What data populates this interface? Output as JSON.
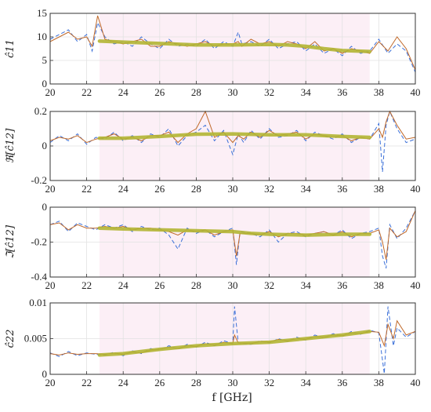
{
  "figure": {
    "xlabel": "f [GHz]",
    "colors": {
      "blue": "#3a6fd8",
      "orange": "#c0692a",
      "green": "#b3b534",
      "axis": "#333333",
      "grid": "#e2e2e2",
      "band": "#f9e1ee"
    }
  },
  "chart_data": [
    {
      "type": "line",
      "ylabel": "ĉ11",
      "xlim": [
        20,
        40
      ],
      "ylim": [
        0,
        15
      ],
      "x_ticks": [
        "20",
        "22",
        "24",
        "26",
        "28",
        "30",
        "32",
        "34",
        "36",
        "38",
        "40"
      ],
      "y_ticks": [
        "0",
        "5",
        "10",
        "15"
      ],
      "series": [
        {
          "role": "raw-dashed",
          "x": [
            20,
            20.5,
            21,
            21.5,
            22,
            22.3,
            22.6,
            23,
            23.5,
            24,
            24.5,
            25,
            25.5,
            26,
            26.5,
            27,
            27.5,
            28,
            28.5,
            29,
            29.5,
            30,
            30.3,
            30.5,
            31,
            31.5,
            32,
            32.5,
            33,
            33.5,
            34,
            34.5,
            35,
            35.5,
            36,
            36.5,
            37,
            37.5,
            38,
            38.5,
            39,
            39.5,
            40
          ],
          "y": [
            9.5,
            10.5,
            11.5,
            9,
            10.5,
            7,
            13,
            10,
            8.5,
            9,
            8,
            10,
            8.5,
            7.5,
            9.5,
            8,
            8.5,
            8,
            9.5,
            7.5,
            9,
            8,
            11,
            8.5,
            9,
            8,
            9.5,
            7.5,
            8.5,
            9,
            7,
            8.5,
            6.5,
            7.5,
            6,
            8,
            6.5,
            7,
            9.5,
            6.5,
            8.5,
            7,
            2.5
          ]
        },
        {
          "role": "raw",
          "x": [
            20,
            20.5,
            21,
            21.5,
            22,
            22.3,
            22.6,
            23,
            23.5,
            24,
            24.5,
            25,
            25.5,
            26,
            26.5,
            27,
            27.5,
            28,
            28.5,
            29,
            29.5,
            30,
            30.3,
            30.5,
            31,
            31.5,
            32,
            32.5,
            33,
            33.5,
            34,
            34.5,
            35,
            35.5,
            36,
            36.5,
            37,
            37.5,
            38,
            38.5,
            39,
            39.5,
            40
          ],
          "y": [
            9,
            10,
            11,
            9.5,
            10,
            8,
            14.5,
            9.5,
            9,
            8.5,
            9,
            9.5,
            8,
            8,
            9,
            8.5,
            8,
            8.5,
            9,
            8,
            8.5,
            8.5,
            9,
            8,
            9.5,
            8.5,
            9,
            8,
            9,
            8.5,
            7.5,
            9,
            7,
            7.5,
            6.5,
            7.5,
            7,
            6.5,
            9,
            7,
            10,
            7.5,
            3
          ]
        },
        {
          "role": "fit",
          "x": [
            22.7,
            24,
            26,
            28,
            30,
            32,
            33,
            34,
            35,
            36,
            37.5
          ],
          "y": [
            9.1,
            8.9,
            8.6,
            8.3,
            8.3,
            8.4,
            8.3,
            8.0,
            7.5,
            7.1,
            6.9
          ]
        }
      ]
    },
    {
      "type": "line",
      "ylabel": "ℜ[ĉ12]",
      "xlim": [
        20,
        40
      ],
      "ylim": [
        -0.2,
        0.2
      ],
      "x_ticks": [
        "20",
        "22",
        "24",
        "26",
        "28",
        "30",
        "32",
        "34",
        "36",
        "38",
        "40"
      ],
      "y_ticks": [
        "-0.2",
        "0",
        "0.2"
      ],
      "series": [
        {
          "role": "raw-dashed",
          "x": [
            20,
            20.5,
            21,
            21.5,
            22,
            22.5,
            23,
            23.5,
            24,
            24.5,
            25,
            25.5,
            26,
            26.5,
            27,
            27.5,
            28,
            28.5,
            29,
            29.5,
            30,
            30.3,
            30.6,
            31,
            31.5,
            32,
            32.5,
            33,
            33.5,
            34,
            34.5,
            35,
            35.5,
            36,
            36.5,
            37,
            37.5,
            38,
            38.2,
            38.4,
            38.6,
            39,
            39.5,
            40
          ],
          "y": [
            0.02,
            0.06,
            0.03,
            0.07,
            0.01,
            0.05,
            0.04,
            0.08,
            0.03,
            0.06,
            0.02,
            0.07,
            0.05,
            0.1,
            0.0,
            0.06,
            0.08,
            0.12,
            0.03,
            0.09,
            -0.05,
            0.07,
            0.02,
            0.09,
            0.04,
            0.1,
            0.05,
            0.06,
            0.09,
            0.03,
            0.08,
            0.06,
            0.04,
            0.07,
            0.02,
            0.05,
            0.04,
            0.13,
            -0.15,
            0.12,
            0.2,
            0.1,
            0.02,
            0.04
          ]
        },
        {
          "role": "raw",
          "x": [
            20,
            20.5,
            21,
            21.5,
            22,
            22.5,
            23,
            23.5,
            24,
            24.5,
            25,
            25.5,
            26,
            26.5,
            27,
            27.5,
            28,
            28.5,
            29,
            29.5,
            30,
            30.3,
            30.6,
            31,
            31.5,
            32,
            32.5,
            33,
            33.5,
            34,
            34.5,
            35,
            35.5,
            36,
            36.5,
            37,
            37.5,
            38,
            38.2,
            38.4,
            38.6,
            39,
            39.5,
            40
          ],
          "y": [
            0.03,
            0.05,
            0.04,
            0.06,
            0.02,
            0.04,
            0.05,
            0.07,
            0.04,
            0.05,
            0.03,
            0.06,
            0.06,
            0.08,
            0.02,
            0.07,
            0.1,
            0.2,
            0.05,
            0.08,
            0.02,
            0.06,
            0.04,
            0.08,
            0.05,
            0.09,
            0.06,
            0.07,
            0.08,
            0.04,
            0.07,
            0.06,
            0.05,
            0.06,
            0.03,
            0.05,
            0.04,
            0.1,
            0.05,
            0.14,
            0.2,
            0.12,
            0.04,
            0.05
          ]
        },
        {
          "role": "fit",
          "x": [
            22.7,
            24,
            26,
            28,
            30,
            32,
            34,
            36,
            37.5
          ],
          "y": [
            0.045,
            0.045,
            0.055,
            0.068,
            0.07,
            0.065,
            0.065,
            0.055,
            0.05
          ]
        }
      ]
    },
    {
      "type": "line",
      "ylabel": "ℑ[ĉ12]",
      "xlim": [
        20,
        40
      ],
      "ylim": [
        -0.4,
        0
      ],
      "x_ticks": [
        "20",
        "22",
        "24",
        "26",
        "28",
        "30",
        "32",
        "34",
        "36",
        "38",
        "40"
      ],
      "y_ticks": [
        "-0.4",
        "-0.2",
        "0"
      ],
      "series": [
        {
          "role": "raw-dashed",
          "x": [
            20,
            20.5,
            21,
            21.5,
            22,
            22.5,
            23,
            23.5,
            24,
            24.5,
            25,
            25.5,
            26,
            26.5,
            27,
            27.5,
            28,
            28.5,
            29,
            29.5,
            30,
            30.2,
            30.4,
            31,
            31.5,
            32,
            32.5,
            33,
            33.5,
            34,
            34.5,
            35,
            35.5,
            36,
            36.5,
            37,
            37.5,
            38,
            38.2,
            38.4,
            38.6,
            39,
            39.5,
            40
          ],
          "y": [
            -0.1,
            -0.08,
            -0.14,
            -0.09,
            -0.11,
            -0.13,
            -0.1,
            -0.12,
            -0.1,
            -0.14,
            -0.11,
            -0.13,
            -0.12,
            -0.16,
            -0.24,
            -0.12,
            -0.15,
            -0.13,
            -0.17,
            -0.14,
            -0.12,
            -0.33,
            -0.14,
            -0.15,
            -0.17,
            -0.13,
            -0.2,
            -0.15,
            -0.14,
            -0.17,
            -0.15,
            -0.14,
            -0.16,
            -0.13,
            -0.18,
            -0.15,
            -0.14,
            -0.12,
            -0.28,
            -0.35,
            -0.1,
            -0.18,
            -0.12,
            -0.02
          ]
        },
        {
          "role": "raw",
          "x": [
            20,
            20.5,
            21,
            21.5,
            22,
            22.5,
            23,
            23.5,
            24,
            24.5,
            25,
            25.5,
            26,
            26.5,
            27,
            27.5,
            28,
            28.5,
            29,
            29.5,
            30,
            30.2,
            30.4,
            31,
            31.5,
            32,
            32.5,
            33,
            33.5,
            34,
            34.5,
            35,
            35.5,
            36,
            36.5,
            37,
            37.5,
            38,
            38.2,
            38.4,
            38.6,
            39,
            39.5,
            40
          ],
          "y": [
            -0.1,
            -0.09,
            -0.13,
            -0.1,
            -0.12,
            -0.12,
            -0.11,
            -0.12,
            -0.11,
            -0.13,
            -0.12,
            -0.12,
            -0.13,
            -0.14,
            -0.16,
            -0.13,
            -0.14,
            -0.13,
            -0.16,
            -0.14,
            -0.13,
            -0.28,
            -0.15,
            -0.15,
            -0.16,
            -0.14,
            -0.17,
            -0.15,
            -0.15,
            -0.16,
            -0.15,
            -0.14,
            -0.16,
            -0.14,
            -0.17,
            -0.15,
            -0.15,
            -0.13,
            -0.2,
            -0.3,
            -0.12,
            -0.17,
            -0.14,
            -0.02
          ]
        },
        {
          "role": "fit",
          "x": [
            22.7,
            24,
            26,
            28,
            30,
            31,
            32,
            34,
            36,
            37.5
          ],
          "y": [
            -0.12,
            -0.125,
            -0.13,
            -0.135,
            -0.14,
            -0.15,
            -0.155,
            -0.16,
            -0.155,
            -0.155
          ]
        }
      ]
    },
    {
      "type": "line",
      "ylabel": "ĉ22",
      "xlim": [
        20,
        40
      ],
      "ylim": [
        0,
        0.01
      ],
      "x_ticks": [
        "20",
        "22",
        "24",
        "26",
        "28",
        "30",
        "32",
        "34",
        "36",
        "38",
        "40"
      ],
      "y_ticks": [
        "0",
        "0.005",
        "0.01"
      ],
      "series": [
        {
          "role": "raw-dashed",
          "x": [
            20,
            20.5,
            21,
            21.5,
            22,
            22.5,
            23,
            23.5,
            24,
            24.5,
            25,
            25.5,
            26,
            26.5,
            27,
            27.5,
            28,
            28.5,
            29,
            29.5,
            30,
            30.1,
            30.3,
            31,
            31.5,
            32,
            32.5,
            33,
            33.5,
            34,
            34.5,
            35,
            35.5,
            36,
            36.5,
            37,
            37.5,
            38,
            38.3,
            38.5,
            38.8,
            39,
            39.5,
            40
          ],
          "y": [
            0.003,
            0.0025,
            0.0032,
            0.0026,
            0.003,
            0.0028,
            0.0027,
            0.0031,
            0.0026,
            0.0033,
            0.0029,
            0.0036,
            0.0034,
            0.004,
            0.0035,
            0.0042,
            0.0038,
            0.0045,
            0.004,
            0.0047,
            0.0043,
            0.0095,
            0.0044,
            0.0042,
            0.0047,
            0.0044,
            0.005,
            0.0046,
            0.0052,
            0.0048,
            0.0055,
            0.0051,
            0.0057,
            0.0053,
            0.006,
            0.0056,
            0.0062,
            0.0058,
            0.0001,
            0.0095,
            0.004,
            0.0065,
            0.0052,
            0.006
          ]
        },
        {
          "role": "raw",
          "x": [
            20,
            20.5,
            21,
            21.5,
            22,
            22.5,
            23,
            23.5,
            24,
            24.5,
            25,
            25.5,
            26,
            26.5,
            27,
            27.5,
            28,
            28.5,
            29,
            29.5,
            30,
            30.1,
            30.3,
            31,
            31.5,
            32,
            32.5,
            33,
            33.5,
            34,
            34.5,
            35,
            35.5,
            36,
            36.5,
            37,
            37.5,
            38,
            38.3,
            38.5,
            38.8,
            39,
            39.5,
            40
          ],
          "y": [
            0.0029,
            0.0027,
            0.003,
            0.0028,
            0.0029,
            0.0029,
            0.0028,
            0.003,
            0.0028,
            0.0031,
            0.003,
            0.0034,
            0.0035,
            0.0038,
            0.0036,
            0.004,
            0.0039,
            0.0043,
            0.0041,
            0.0045,
            0.0043,
            0.0055,
            0.0044,
            0.0043,
            0.0046,
            0.0045,
            0.0049,
            0.0047,
            0.005,
            0.0049,
            0.0053,
            0.0052,
            0.0055,
            0.0054,
            0.0058,
            0.0057,
            0.006,
            0.0059,
            0.004,
            0.007,
            0.005,
            0.0075,
            0.0055,
            0.006
          ]
        },
        {
          "role": "fit",
          "x": [
            22.7,
            24,
            26,
            28,
            30,
            32,
            34,
            36,
            37.5
          ],
          "y": [
            0.0027,
            0.0029,
            0.0035,
            0.004,
            0.0043,
            0.0045,
            0.005,
            0.0055,
            0.006
          ]
        }
      ]
    }
  ]
}
